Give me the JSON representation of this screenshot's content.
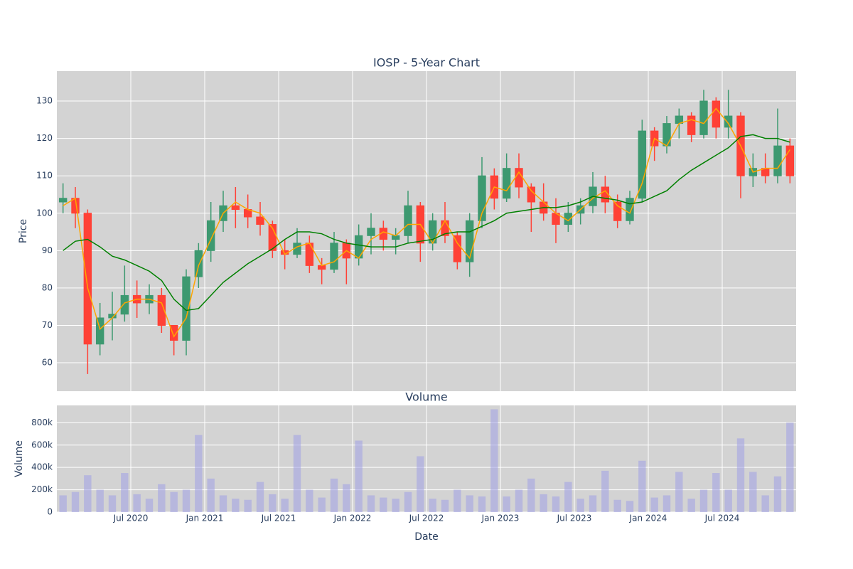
{
  "chart_data": [
    {
      "type": "candlestick",
      "title": "IOSP - 5-Year Chart",
      "ylabel": "Price",
      "x": [
        "2020-01",
        "2020-02",
        "2020-03",
        "2020-04",
        "2020-05",
        "2020-06",
        "2020-07",
        "2020-08",
        "2020-09",
        "2020-10",
        "2020-11",
        "2020-12",
        "2021-01",
        "2021-02",
        "2021-03",
        "2021-04",
        "2021-05",
        "2021-06",
        "2021-07",
        "2021-08",
        "2021-09",
        "2021-10",
        "2021-11",
        "2021-12",
        "2022-01",
        "2022-02",
        "2022-03",
        "2022-04",
        "2022-05",
        "2022-06",
        "2022-07",
        "2022-08",
        "2022-09",
        "2022-10",
        "2022-11",
        "2022-12",
        "2023-01",
        "2023-02",
        "2023-03",
        "2023-04",
        "2023-05",
        "2023-06",
        "2023-07",
        "2023-08",
        "2023-09",
        "2023-10",
        "2023-11",
        "2023-12",
        "2024-01",
        "2024-02",
        "2024-03",
        "2024-04",
        "2024-05",
        "2024-06",
        "2024-07",
        "2024-08",
        "2024-09",
        "2024-10",
        "2024-11",
        "2024-12"
      ],
      "open": [
        103,
        104,
        100,
        65,
        72,
        73,
        78,
        76,
        78,
        70,
        66,
        83,
        90,
        98,
        102,
        101,
        99,
        97,
        90,
        89,
        92,
        86,
        85,
        92,
        88,
        94,
        96,
        93,
        94,
        102,
        92,
        98,
        94,
        87,
        98,
        110,
        104,
        112,
        107,
        103,
        100,
        97,
        100,
        102,
        107,
        103,
        98,
        104,
        122,
        118,
        124,
        126,
        121,
        130,
        123,
        126,
        110,
        112,
        110,
        118
      ],
      "high": [
        108,
        107,
        101,
        76,
        79,
        86,
        82,
        81,
        80,
        70,
        85,
        92,
        103,
        106,
        107,
        105,
        103,
        98,
        93,
        96,
        94,
        88,
        95,
        93,
        97,
        100,
        98,
        96,
        106,
        103,
        100,
        103,
        95,
        100,
        115,
        112,
        116,
        116,
        108,
        108,
        104,
        103,
        104,
        111,
        110,
        105,
        106,
        125,
        123,
        126,
        128,
        127,
        133,
        131,
        133,
        127,
        116,
        116,
        128,
        120
      ],
      "low": [
        100,
        96,
        57,
        62,
        66,
        71,
        72,
        73,
        68,
        62,
        62,
        80,
        87,
        95,
        96,
        96,
        94,
        88,
        85,
        88,
        84,
        81,
        84,
        81,
        86,
        89,
        90,
        89,
        92,
        87,
        90,
        92,
        85,
        83,
        96,
        101,
        103,
        104,
        95,
        98,
        92,
        95,
        97,
        100,
        100,
        96,
        97,
        103,
        114,
        116,
        120,
        119,
        120,
        120,
        120,
        104,
        107,
        108,
        108,
        108
      ],
      "close": [
        104,
        100,
        65,
        72,
        73,
        78,
        76,
        78,
        70,
        66,
        83,
        90,
        98,
        102,
        101,
        99,
        97,
        90,
        89,
        92,
        86,
        85,
        92,
        88,
        94,
        96,
        93,
        94,
        102,
        92,
        98,
        94,
        87,
        98,
        110,
        104,
        112,
        107,
        103,
        100,
        97,
        100,
        102,
        107,
        103,
        98,
        104,
        122,
        118,
        124,
        126,
        121,
        130,
        123,
        126,
        110,
        112,
        110,
        118,
        110
      ],
      "increasing_color": "#3d9970",
      "decreasing_color": "#ff4136",
      "series": [
        {
          "color": "orange",
          "values": [
            102,
            104,
            80,
            69,
            72,
            76,
            77,
            77,
            76,
            67,
            72,
            86,
            93,
            100,
            103,
            101,
            100,
            96,
            89,
            91,
            92,
            86,
            87,
            90,
            88,
            93,
            95,
            94,
            97,
            97,
            92,
            98,
            92,
            88,
            100,
            107,
            106,
            111,
            106,
            103,
            100,
            98,
            101,
            104,
            106,
            102,
            100,
            108,
            120,
            118,
            124,
            125,
            124,
            128,
            124,
            118,
            111,
            112,
            112,
            117
          ]
        },
        {
          "color": "green",
          "values": [
            90,
            92.5,
            93,
            91,
            88.5,
            87.5,
            86,
            84.5,
            82,
            77,
            74,
            74.5,
            78,
            81.5,
            84,
            86.5,
            88.5,
            90.5,
            93,
            95,
            95,
            94.5,
            93,
            92,
            91.5,
            91,
            91,
            91,
            92,
            92.5,
            93,
            94.5,
            95,
            95,
            96.5,
            98,
            100,
            100.5,
            101,
            101.5,
            101.5,
            102,
            103,
            104.5,
            104,
            103.5,
            102.5,
            103,
            104.5,
            106,
            109,
            111.5,
            113.5,
            115.5,
            117.5,
            120.5,
            121,
            120,
            120,
            119
          ]
        }
      ],
      "xlim": [
        "2020-01",
        "2025-01"
      ],
      "ylim": [
        52.4,
        138
      ],
      "yticks": [
        60,
        70,
        80,
        90,
        100,
        110,
        120,
        130
      ],
      "grid": true
    },
    {
      "type": "bar",
      "title": "Volume",
      "ylabel": "Volume",
      "xlabel": "Date",
      "x": [
        "2020-01",
        "2020-02",
        "2020-03",
        "2020-04",
        "2020-05",
        "2020-06",
        "2020-07",
        "2020-08",
        "2020-09",
        "2020-10",
        "2020-11",
        "2020-12",
        "2021-01",
        "2021-02",
        "2021-03",
        "2021-04",
        "2021-05",
        "2021-06",
        "2021-07",
        "2021-08",
        "2021-09",
        "2021-10",
        "2021-11",
        "2021-12",
        "2022-01",
        "2022-02",
        "2022-03",
        "2022-04",
        "2022-05",
        "2022-06",
        "2022-07",
        "2022-08",
        "2022-09",
        "2022-10",
        "2022-11",
        "2022-12",
        "2023-01",
        "2023-02",
        "2023-03",
        "2023-04",
        "2023-05",
        "2023-06",
        "2023-07",
        "2023-08",
        "2023-09",
        "2023-10",
        "2023-11",
        "2023-12",
        "2024-01",
        "2024-02",
        "2024-03",
        "2024-04",
        "2024-05",
        "2024-06",
        "2024-07",
        "2024-08",
        "2024-09",
        "2024-10",
        "2024-11",
        "2024-12"
      ],
      "values": [
        150000,
        180000,
        330000,
        200000,
        150000,
        350000,
        160000,
        120000,
        250000,
        180000,
        200000,
        690000,
        300000,
        150000,
        120000,
        110000,
        270000,
        160000,
        120000,
        690000,
        200000,
        130000,
        300000,
        250000,
        640000,
        150000,
        130000,
        120000,
        180000,
        500000,
        120000,
        110000,
        200000,
        150000,
        140000,
        920000,
        140000,
        200000,
        300000,
        160000,
        140000,
        270000,
        120000,
        150000,
        370000,
        110000,
        100000,
        460000,
        130000,
        150000,
        360000,
        120000,
        200000,
        350000,
        200000,
        660000,
        360000,
        150000,
        320000,
        800000
      ],
      "color": "rgba(160,160,230,0.55)",
      "xlim": [
        "2020-01",
        "2025-01"
      ],
      "xticks": [
        {
          "value": "2020-07",
          "label": "Jul 2020"
        },
        {
          "value": "2021-01",
          "label": "Jan 2021"
        },
        {
          "value": "2021-07",
          "label": "Jul 2021"
        },
        {
          "value": "2022-01",
          "label": "Jan 2022"
        },
        {
          "value": "2022-07",
          "label": "Jul 2022"
        },
        {
          "value": "2023-01",
          "label": "Jan 2023"
        },
        {
          "value": "2023-07",
          "label": "Jul 2023"
        },
        {
          "value": "2024-01",
          "label": "Jan 2024"
        },
        {
          "value": "2024-07",
          "label": "Jul 2024"
        }
      ],
      "ylim": [
        0,
        955000
      ],
      "yticks": [
        0,
        {
          "value": 200000,
          "label": "200k"
        },
        {
          "value": 400000,
          "label": "400k"
        },
        {
          "value": 600000,
          "label": "600k"
        },
        {
          "value": 800000,
          "label": "800k"
        }
      ],
      "grid": true
    }
  ]
}
